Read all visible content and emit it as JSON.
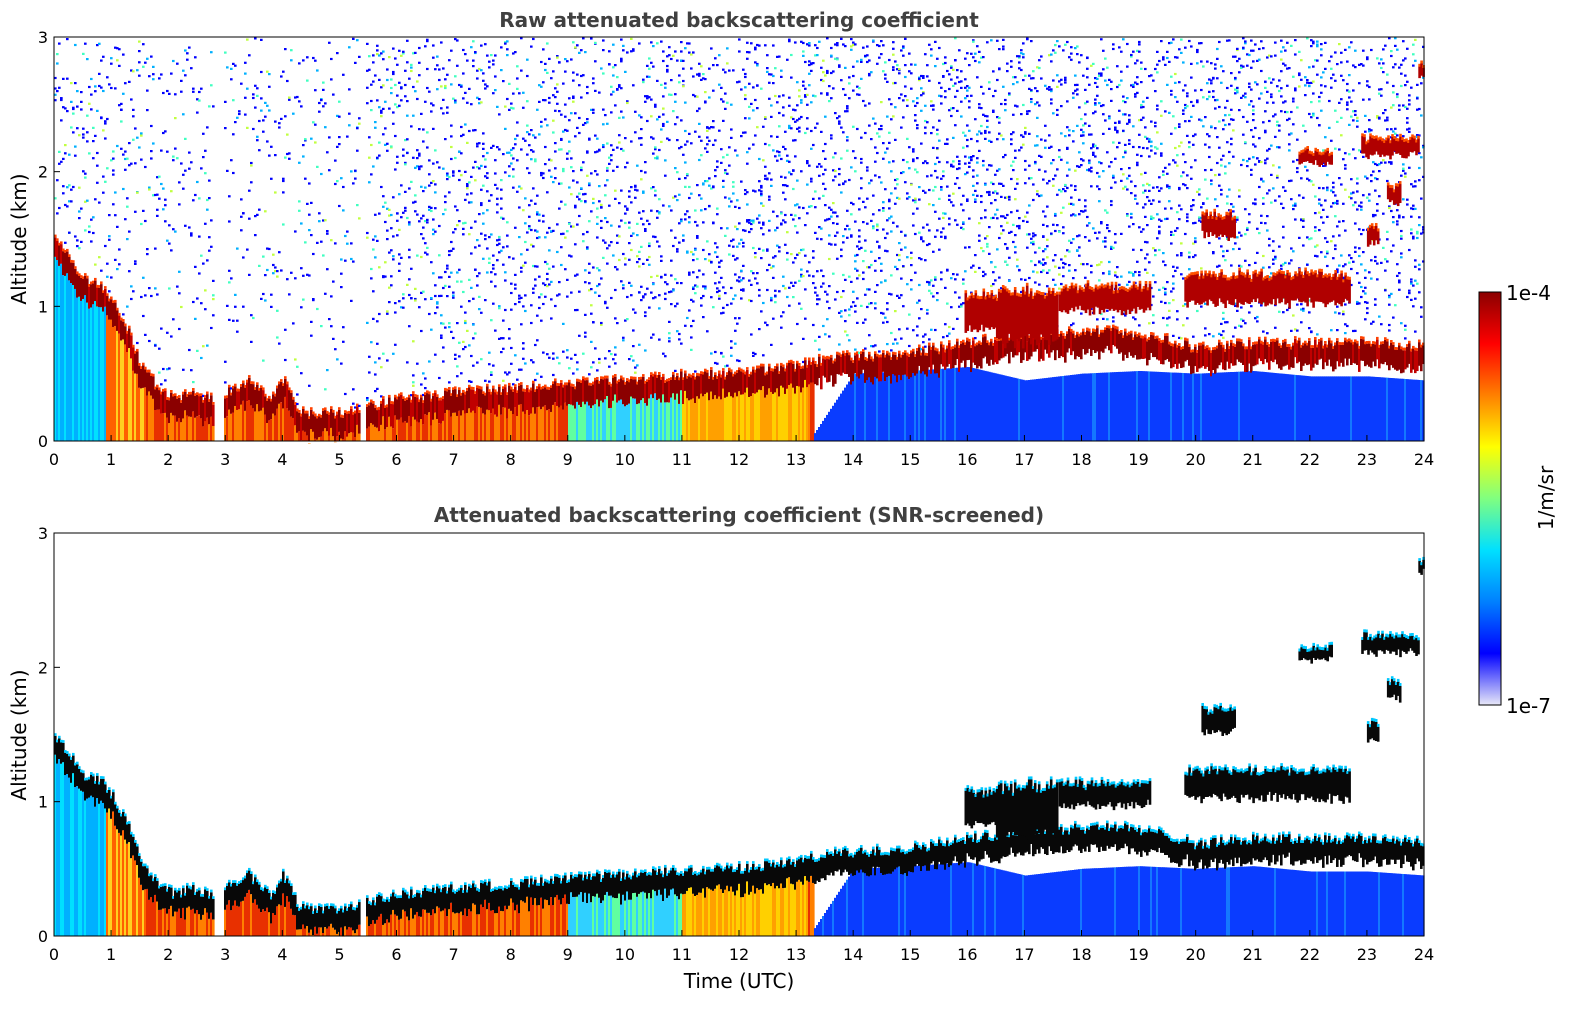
{
  "chart_data": [
    {
      "type": "heatmap",
      "title": "Raw attenuated backscattering coefficient",
      "xlabel": "",
      "ylabel": "Altitude (km)",
      "xlim": [
        0,
        24
      ],
      "ylim": [
        0,
        3
      ],
      "xticks": [
        "0",
        "1",
        "2",
        "3",
        "4",
        "5",
        "6",
        "7",
        "8",
        "9",
        "10",
        "11",
        "12",
        "13",
        "14",
        "15",
        "16",
        "17",
        "18",
        "19",
        "20",
        "21",
        "22",
        "23",
        "24"
      ],
      "yticks": [
        "0",
        "1",
        "2",
        "3"
      ],
      "mode": "raw",
      "layer_top_km": [
        [
          0.0,
          1.5
        ],
        [
          0.25,
          1.35
        ],
        [
          0.5,
          1.2
        ],
        [
          0.8,
          1.15
        ],
        [
          1.0,
          1.05
        ],
        [
          1.3,
          0.8
        ],
        [
          1.5,
          0.55
        ],
        [
          1.8,
          0.4
        ],
        [
          2.1,
          0.3
        ],
        [
          2.4,
          0.35
        ],
        [
          2.75,
          0.3
        ],
        [
          3.0,
          0.35
        ],
        [
          3.4,
          0.45
        ],
        [
          3.8,
          0.3
        ],
        [
          4.0,
          0.45
        ],
        [
          4.3,
          0.2
        ],
        [
          5.0,
          0.2
        ],
        [
          5.5,
          0.25
        ],
        [
          6.0,
          0.3
        ],
        [
          7.0,
          0.35
        ],
        [
          8.0,
          0.38
        ],
        [
          9.0,
          0.42
        ],
        [
          10.0,
          0.45
        ],
        [
          11.0,
          0.48
        ],
        [
          12.0,
          0.5
        ],
        [
          13.0,
          0.55
        ],
        [
          13.5,
          0.6
        ],
        [
          14.0,
          0.62
        ],
        [
          15.0,
          0.65
        ],
        [
          16.0,
          0.72
        ],
        [
          17.0,
          0.78
        ],
        [
          18.0,
          0.8
        ],
        [
          18.5,
          0.82
        ],
        [
          19.0,
          0.78
        ],
        [
          19.5,
          0.75
        ],
        [
          20.0,
          0.68
        ],
        [
          21.0,
          0.72
        ],
        [
          22.0,
          0.72
        ],
        [
          23.0,
          0.72
        ],
        [
          24.0,
          0.7
        ]
      ],
      "layer_base_km": [
        [
          0.0,
          0.05
        ],
        [
          13.3,
          0.05
        ],
        [
          14.0,
          0.5
        ],
        [
          15.0,
          0.52
        ],
        [
          16.0,
          0.55
        ],
        [
          17.0,
          0.45
        ],
        [
          18.0,
          0.5
        ],
        [
          19.0,
          0.52
        ],
        [
          20.0,
          0.5
        ],
        [
          21.0,
          0.52
        ],
        [
          22.0,
          0.48
        ],
        [
          23.0,
          0.48
        ],
        [
          24.0,
          0.45
        ]
      ],
      "gaps_utc": [
        [
          2.78,
          2.95
        ],
        [
          5.35,
          5.45
        ]
      ],
      "elevated_layers": [
        {
          "x": [
            15.95,
            16.5
          ],
          "y": [
            0.8,
            1.1
          ]
        },
        {
          "x": [
            16.5,
            17.6
          ],
          "y": [
            0.7,
            1.15
          ]
        },
        {
          "x": [
            17.6,
            19.2
          ],
          "y": [
            0.95,
            1.15
          ]
        },
        {
          "x": [
            19.8,
            22.7
          ],
          "y": [
            1.0,
            1.25
          ]
        },
        {
          "x": [
            20.1,
            20.7
          ],
          "y": [
            1.5,
            1.7
          ]
        },
        {
          "x": [
            21.8,
            22.4
          ],
          "y": [
            2.05,
            2.15
          ]
        },
        {
          "x": [
            22.9,
            23.9
          ],
          "y": [
            2.1,
            2.25
          ]
        },
        {
          "x": [
            23.35,
            23.6
          ],
          "y": [
            1.75,
            1.9
          ]
        },
        {
          "x": [
            23.0,
            23.2
          ],
          "y": [
            1.45,
            1.6
          ]
        },
        {
          "x": [
            23.9,
            24.0
          ],
          "y": [
            2.7,
            2.8
          ]
        }
      ]
    },
    {
      "type": "heatmap",
      "title": "Attenuated backscattering coefficient (SNR-screened)",
      "xlabel": "Time (UTC)",
      "ylabel": "Altitude (km)",
      "xlim": [
        0,
        24
      ],
      "ylim": [
        0,
        3
      ],
      "xticks": [
        "0",
        "1",
        "2",
        "3",
        "4",
        "5",
        "6",
        "7",
        "8",
        "9",
        "10",
        "11",
        "12",
        "13",
        "14",
        "15",
        "16",
        "17",
        "18",
        "19",
        "20",
        "21",
        "22",
        "23",
        "24"
      ],
      "yticks": [
        "0",
        "1",
        "2",
        "3"
      ],
      "mode": "screened"
    }
  ],
  "colorbar": {
    "label": "1/m/sr",
    "max_label": "1e-4",
    "min_label": "1e-7",
    "colormap": [
      "#e8e8f8",
      "#0000ff",
      "#0080ff",
      "#00e0ff",
      "#80ff80",
      "#ffff00",
      "#ff8000",
      "#ff0000",
      "#8b0000"
    ]
  }
}
